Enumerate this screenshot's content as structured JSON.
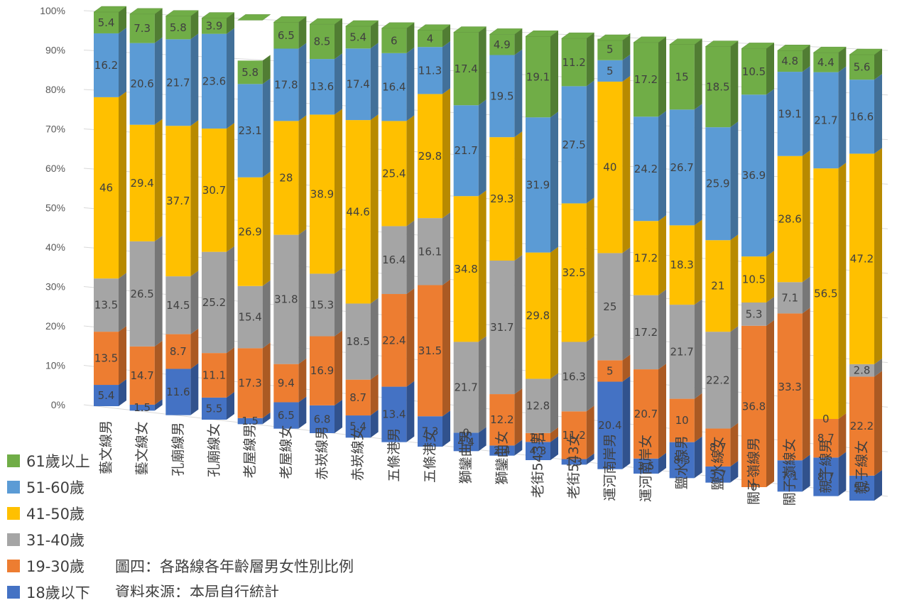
{
  "chart_data": {
    "type": "bar",
    "stacked": "percent",
    "view": "3d",
    "categories": [
      "藝文線男",
      "藝文線女",
      "孔廟線男",
      "孔廟線女",
      "老屋線男",
      "老屋線女",
      "赤崁線男",
      "赤崁線女",
      "五條港男",
      "五條港女",
      "獅鑾曲男",
      "獅鑾曲女",
      "老街543男",
      "老街543女",
      "運河南岸男",
      "運河南岸女",
      "鹽水線男",
      "鹽水線女",
      "關子嶺線男",
      "關子嶺線女",
      "親子線男",
      "親子線女"
    ],
    "series": [
      {
        "name": "18歲以下",
        "color": "#4472C4",
        "values": [
          5.4,
          1.5,
          11.6,
          5.5,
          1.5,
          6.5,
          6.8,
          5.4,
          13.4,
          7.3,
          4.4,
          2.4,
          4.3,
          1.3,
          20.4,
          3.5,
          8.3,
          3.7,
          0,
          7.1,
          8.7,
          5.6
        ]
      },
      {
        "name": "19-30歲",
        "color": "#ED7D31",
        "values": [
          13.5,
          14.7,
          8.7,
          11.1,
          17.3,
          9.4,
          16.9,
          8.7,
          22.4,
          31.5,
          0,
          12.2,
          2.1,
          11.2,
          5,
          20.7,
          10,
          8.7,
          36.8,
          33.3,
          8.7,
          22.2
        ]
      },
      {
        "name": "31-40歲",
        "color": "#A5A5A5",
        "values": [
          13.5,
          26.5,
          14.5,
          25.2,
          15.4,
          31.8,
          15.3,
          18.5,
          16.4,
          16.1,
          21.7,
          31.7,
          12.8,
          16.3,
          25,
          17.2,
          21.7,
          22.2,
          5.3,
          7.1,
          0,
          2.8
        ]
      },
      {
        "name": "41-50歲",
        "color": "#FFC000",
        "values": [
          46,
          29.4,
          37.7,
          30.7,
          26.9,
          28,
          38.9,
          44.6,
          25.4,
          29.8,
          34.8,
          29.3,
          29.8,
          32.5,
          40,
          17.2,
          18.3,
          21,
          10.5,
          28.6,
          56.5,
          47.2
        ]
      },
      {
        "name": "51-60歲",
        "color": "#5B9BD5",
        "values": [
          16.2,
          20.6,
          21.7,
          23.6,
          23.1,
          17.8,
          13.6,
          17.4,
          16.4,
          11.3,
          21.7,
          19.5,
          31.9,
          27.5,
          5,
          24.2,
          26.7,
          25.9,
          36.9,
          19.1,
          21.7,
          16.6
        ]
      },
      {
        "name": "61歲以上",
        "color": "#70AD47",
        "values": [
          5.4,
          7.3,
          5.8,
          3.9,
          5.8,
          6.5,
          8.5,
          5.4,
          6,
          4,
          17.4,
          4.9,
          19.1,
          11.2,
          5,
          17.2,
          15,
          18.5,
          10.5,
          4.8,
          4.4,
          5.6
        ]
      }
    ],
    "yaxis": {
      "ticks": [
        "0%",
        "10%",
        "20%",
        "30%",
        "40%",
        "50%",
        "60%",
        "70%",
        "80%",
        "90%",
        "100%"
      ],
      "ylim": [
        0,
        100
      ]
    },
    "grid": true,
    "legend_position": "bottom-left"
  },
  "legend": [
    {
      "label": "61歲以上",
      "color": "#70AD47"
    },
    {
      "label": "51-60歲",
      "color": "#5B9BD5"
    },
    {
      "label": "41-50歲",
      "color": "#FFC000"
    },
    {
      "label": "31-40歲",
      "color": "#A5A5A5"
    },
    {
      "label": "19-30歲",
      "color": "#ED7D31"
    },
    {
      "label": "18歲以下",
      "color": "#4472C4"
    }
  ],
  "caption": {
    "line1": "圖四：各路線各年齡層男女性別比例",
    "line2": "資料來源：本局自行統計"
  }
}
